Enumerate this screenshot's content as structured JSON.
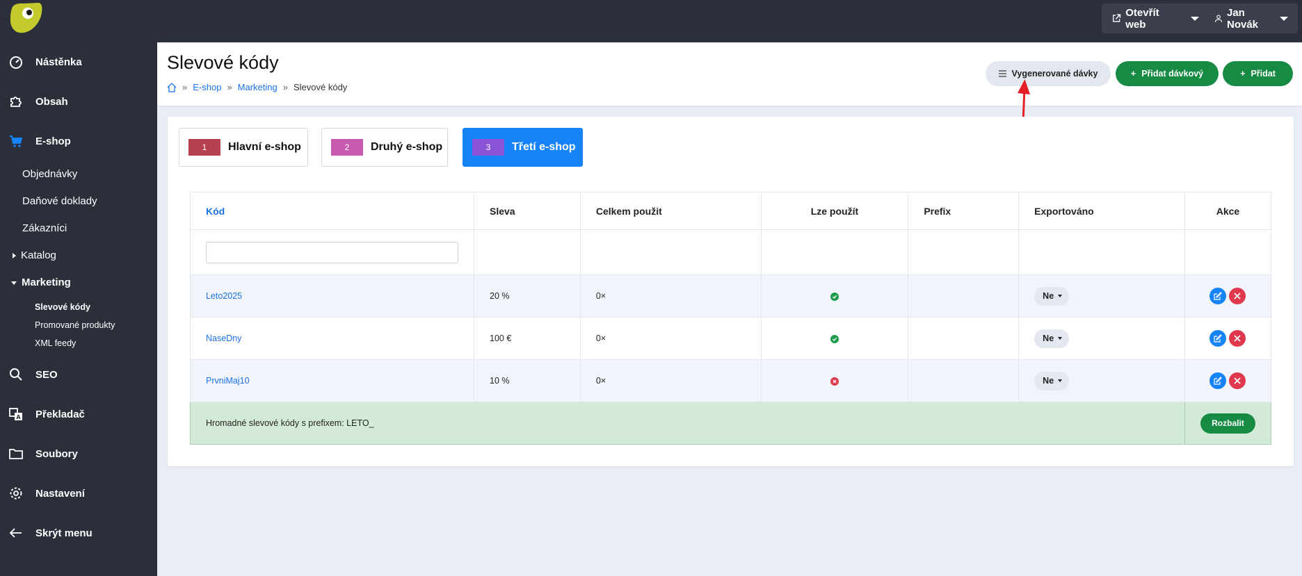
{
  "topbar": {
    "open_web_label": "Otevřít web",
    "user_label": "Jan Novák"
  },
  "sidebar": {
    "items": [
      {
        "label": "Nástěnka",
        "icon": "dashboard-icon"
      },
      {
        "label": "Obsah",
        "icon": "puzzle-icon"
      },
      {
        "label": "E-shop",
        "icon": "cart-icon"
      },
      {
        "label": "SEO",
        "icon": "search-icon"
      },
      {
        "label": "Překladač",
        "icon": "translate-icon"
      },
      {
        "label": "Soubory",
        "icon": "folder-icon"
      },
      {
        "label": "Nastavení",
        "icon": "gear-icon"
      },
      {
        "label": "Skrýt menu",
        "icon": "arrow-left-icon"
      }
    ],
    "eshop_sub": [
      "Objednávky",
      "Daňové doklady",
      "Zákazníci",
      "Katalog",
      "Marketing"
    ],
    "marketing_sub": [
      "Slevové kódy",
      "Promované produkty",
      "XML feedy"
    ]
  },
  "header": {
    "title": "Slevové kódy",
    "breadcrumb": [
      "E-shop",
      "Marketing",
      "Slevové kódy"
    ],
    "breadcrumb_sep": "»",
    "btn_batches": "Vygenerované dávky",
    "btn_add_batch": "Přidat dávkový",
    "btn_add": "Přidat"
  },
  "shops": [
    {
      "num": "1",
      "label": "Hlavní e-shop",
      "color": "#b5404f"
    },
    {
      "num": "2",
      "label": "Druhý e-shop",
      "color": "#c75bb0"
    },
    {
      "num": "3",
      "label": "Třetí e-shop",
      "color": "#8a54d6"
    }
  ],
  "table": {
    "headers": [
      "Kód",
      "Sleva",
      "Celkem použit",
      "Lze použít",
      "Prefix",
      "Exportováno",
      "Akce"
    ],
    "rows": [
      {
        "code": "Leto2025",
        "discount": "20 %",
        "used": "0×",
        "usable": true,
        "prefix": "",
        "exported": "Ne"
      },
      {
        "code": "NaseDny",
        "discount": "100 €",
        "used": "0×",
        "usable": true,
        "prefix": "",
        "exported": "Ne"
      },
      {
        "code": "PrvniMaj10",
        "discount": "10 %",
        "used": "0×",
        "usable": false,
        "prefix": "",
        "exported": "Ne"
      }
    ],
    "batch_text": "Hromadné slevové kódy s prefixem: LETO_",
    "batch_button": "Rozbalit"
  },
  "colors": {
    "accent": "#1683f8",
    "green": "#178a43",
    "red": "#e0394e",
    "sidebar_bg": "#2b2f3a"
  }
}
